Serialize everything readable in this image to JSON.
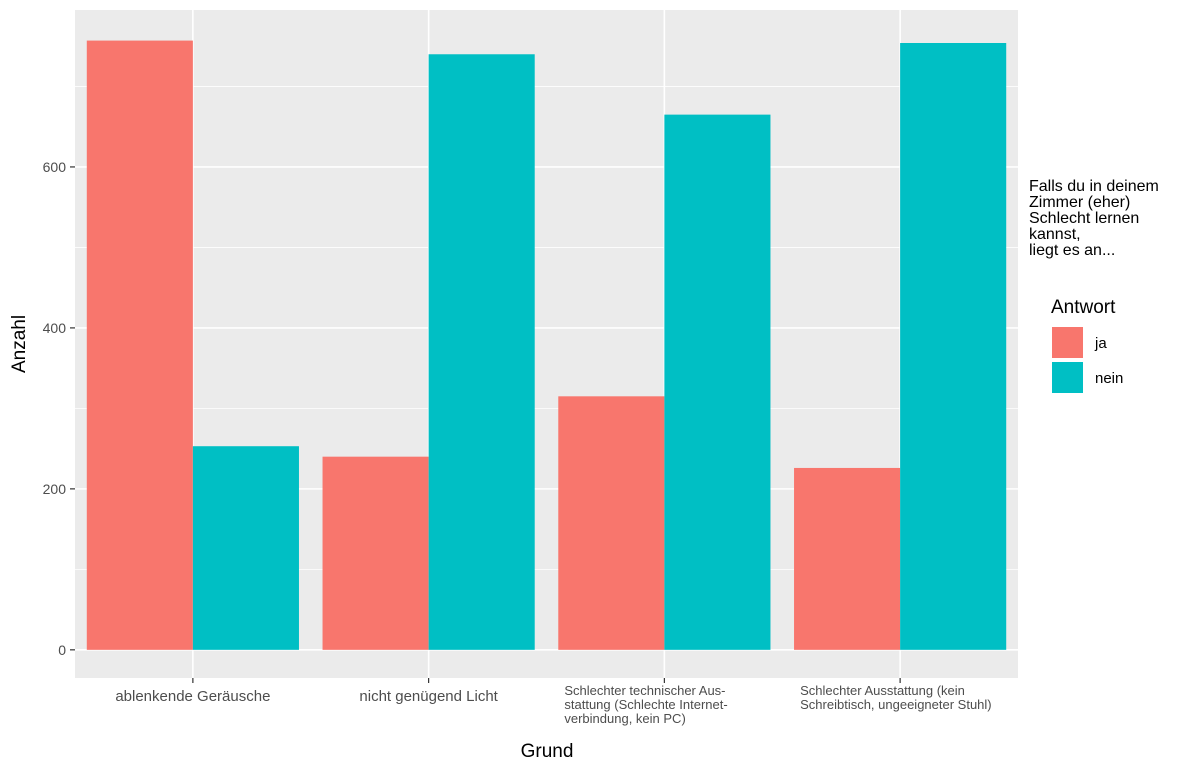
{
  "chart_data": {
    "type": "bar",
    "categories": [
      [
        "ablenkende Geräusche"
      ],
      [
        "nicht genügend Licht"
      ],
      [
        "Schlechter technischer Aus-",
        "stattung (Schlechte Internet-",
        "verbindung, kein PC)"
      ],
      [
        "Schlechter Ausstattung (kein",
        "Schreibtisch, ungeeigneter Stuhl)"
      ]
    ],
    "series": [
      {
        "name": "ja",
        "color": "#F8766D",
        "values": [
          757,
          240,
          315,
          226
        ]
      },
      {
        "name": "nein",
        "color": "#00BFC4",
        "values": [
          253,
          740,
          665,
          754
        ]
      }
    ],
    "xlabel": "Grund",
    "ylabel": "Anzahl",
    "ylim": [
      -35,
      795
    ],
    "yticks": [
      0,
      200,
      400,
      600
    ],
    "grid": true,
    "legend": {
      "note": [
        "Falls du in deinem",
        "Zimmer (eher)",
        "Schlecht lernen",
        "kannst,",
        "liegt es an..."
      ],
      "title": "Antwort",
      "placement": "right"
    },
    "colors": {
      "panel": "#EBEBEB",
      "gridline": "#FFFFFF",
      "text": "#4d4d4d"
    }
  }
}
